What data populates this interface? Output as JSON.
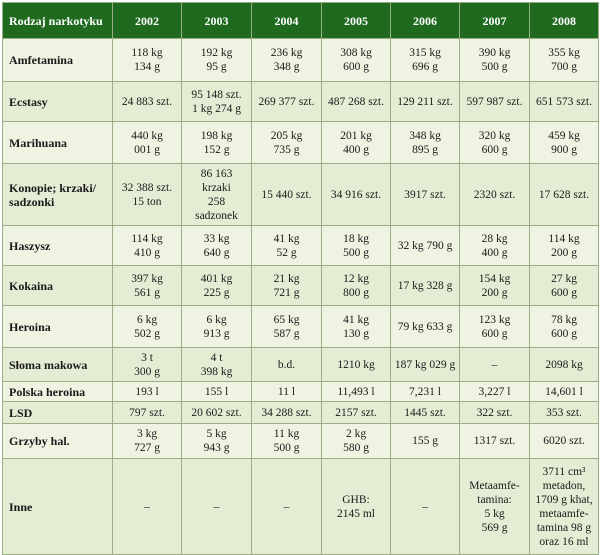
{
  "header": {
    "corner": "Rodzaj narkotyku",
    "years": [
      "2002",
      "2003",
      "2004",
      "2005",
      "2006",
      "2007",
      "2008"
    ]
  },
  "rows": [
    {
      "name": "Amfetamina",
      "cells": [
        [
          "118 kg",
          "134 g"
        ],
        [
          "192 kg",
          "95 g"
        ],
        [
          "236 kg",
          "348 g"
        ],
        [
          "308 kg",
          "600 g"
        ],
        [
          "315 kg",
          "696 g"
        ],
        [
          "390 kg",
          "500 g"
        ],
        [
          "355 kg",
          "700 g"
        ]
      ]
    },
    {
      "name": "Ecstasy",
      "cells": [
        [
          "24 883 szt."
        ],
        [
          "95 148 szt.",
          "1 kg 274 g"
        ],
        [
          "269 377 szt."
        ],
        [
          "487 268 szt."
        ],
        [
          "129 211 szt."
        ],
        [
          "597 987 szt."
        ],
        [
          "651 573 szt."
        ]
      ]
    },
    {
      "name": "Marihuana",
      "cells": [
        [
          "440 kg",
          "001 g"
        ],
        [
          "198 kg",
          "152 g"
        ],
        [
          "205 kg",
          "735 g"
        ],
        [
          "201 kg",
          "400 g"
        ],
        [
          "348 kg",
          "895 g"
        ],
        [
          "320 kg",
          "600 g"
        ],
        [
          "459 kg",
          "900 g"
        ]
      ]
    },
    {
      "name": "Konopie; krzaki/ sadzonki",
      "cells": [
        [
          "32 388 szt.",
          "15 ton"
        ],
        [
          "86 163",
          "krzaki",
          "258",
          "sadzonek"
        ],
        [
          "15 440 szt."
        ],
        [
          "34 916 szt."
        ],
        [
          "3917 szt."
        ],
        [
          "2320 szt."
        ],
        [
          "17 628 szt."
        ]
      ]
    },
    {
      "name": "Haszysz",
      "cells": [
        [
          "114 kg",
          "410 g"
        ],
        [
          "33 kg",
          "640 g"
        ],
        [
          "41 kg",
          "52 g"
        ],
        [
          "18 kg",
          "500 g"
        ],
        [
          "32 kg 790 g"
        ],
        [
          "28 kg",
          "400 g"
        ],
        [
          "114 kg",
          "200 g"
        ]
      ]
    },
    {
      "name": "Kokaina",
      "cells": [
        [
          "397 kg",
          "561 g"
        ],
        [
          "401 kg",
          "225 g"
        ],
        [
          "21 kg",
          "721 g"
        ],
        [
          "12 kg",
          "800 g"
        ],
        [
          "17 kg 328 g"
        ],
        [
          "154 kg",
          "200 g"
        ],
        [
          "27 kg",
          "600 g"
        ]
      ]
    },
    {
      "name": "Heroina",
      "cells": [
        [
          "6 kg",
          "502 g"
        ],
        [
          "6 kg",
          "913 g"
        ],
        [
          "65 kg",
          "587 g"
        ],
        [
          "41 kg",
          "130 g"
        ],
        [
          "79 kg 633 g"
        ],
        [
          "123 kg",
          "600 g"
        ],
        [
          "78 kg",
          "600 g"
        ]
      ]
    },
    {
      "name": "Słoma makowa",
      "cells": [
        [
          "3 t",
          "300 g"
        ],
        [
          "4 t",
          "398 kg"
        ],
        [
          "b.d."
        ],
        [
          "1210 kg"
        ],
        [
          "187 kg 029 g"
        ],
        [
          "–"
        ],
        [
          "2098 kg"
        ]
      ]
    },
    {
      "name": "Polska heroina",
      "cells": [
        [
          "193 l"
        ],
        [
          "155 l"
        ],
        [
          "11 l"
        ],
        [
          "11,493 l"
        ],
        [
          "7,231 l"
        ],
        [
          "3,227 l"
        ],
        [
          "14,601 l"
        ]
      ]
    },
    {
      "name": "LSD",
      "cells": [
        [
          "797 szt."
        ],
        [
          "20 602 szt."
        ],
        [
          "34 288 szt."
        ],
        [
          "2157 szt."
        ],
        [
          "1445 szt."
        ],
        [
          "322 szt."
        ],
        [
          "353 szt."
        ]
      ]
    },
    {
      "name": "Grzyby hal.",
      "cells": [
        [
          "3 kg",
          "727 g"
        ],
        [
          "5 kg",
          "943 g"
        ],
        [
          "11 kg",
          "500 g"
        ],
        [
          "2 kg",
          "580 g"
        ],
        [
          "155 g"
        ],
        [
          "1317 szt."
        ],
        [
          "6020 szt."
        ]
      ]
    },
    {
      "name": "Inne",
      "cells": [
        [
          "–"
        ],
        [
          "–"
        ],
        [
          "–"
        ],
        [
          "GHB:",
          "2145 ml"
        ],
        [
          "–"
        ],
        [
          "Metaamfe-",
          "tamina:",
          "5 kg",
          "569 g"
        ],
        [
          "3711 cm³",
          "metadon,",
          "1709 g khat,",
          "metaamfe-",
          "tamina 98 g",
          "oraz 16 ml"
        ]
      ]
    }
  ]
}
